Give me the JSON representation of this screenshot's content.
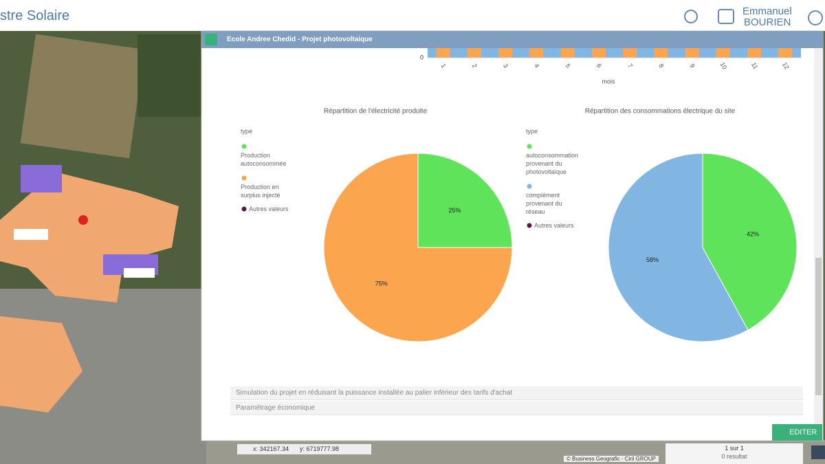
{
  "header": {
    "title": "stre Solaire",
    "user_first": "Emmanuel",
    "user_last": "BOURIEN"
  },
  "panel": {
    "title": "Ecole Andree Chedid - Projet photovoltaique",
    "bar_chart": {
      "yticks": [
        0
      ],
      "categories": [
        "1",
        "2",
        "3",
        "4",
        "5",
        "6",
        "7",
        "8",
        "9",
        "10",
        "11",
        "12"
      ],
      "x_label": "mois"
    },
    "charts": [
      {
        "type": "pie",
        "title": "Répartition de l'électricité produite",
        "legend_title": "type",
        "categories": [
          "Production autoconsommée",
          "Production en surplus injecté"
        ],
        "colors": [
          "#5ee35a",
          "#fba64e"
        ],
        "values": [
          25,
          75
        ],
        "value_labels": [
          "25%",
          "75%"
        ],
        "other_label": "Autres valeurs",
        "other_color": "#5c1548"
      },
      {
        "type": "pie",
        "title": "Répartition des consommations électrique du site",
        "legend_title": "type",
        "categories": [
          "autoconsommation provenant du photovoltaïque",
          "complément provenant du réseau"
        ],
        "colors": [
          "#5ee35a",
          "#82b6e2"
        ],
        "values": [
          42,
          58
        ],
        "value_labels": [
          "42%",
          "58%"
        ],
        "other_label": "Autres valeurs",
        "other_color": "#5c1548"
      }
    ],
    "sections": [
      "Simulation du projet en réduisant la puissance installée au palier inférieur des tarifs d'achat",
      "Paramétrage économique"
    ],
    "edit_button": "EDITER"
  },
  "status": {
    "x": "x: 342167.34",
    "y": "y: 6719777.98",
    "copyright": "© Business Geografic - Ciril GROUP",
    "page": "1 sur 1",
    "results": "0 resultat"
  }
}
